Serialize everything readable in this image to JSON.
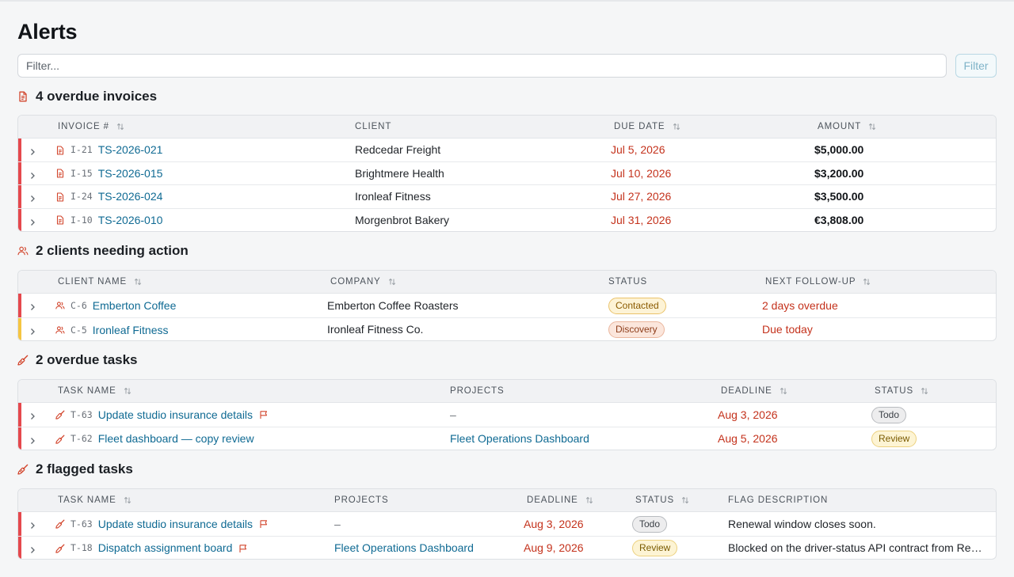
{
  "page": {
    "title": "Alerts",
    "filter_placeholder": "Filter...",
    "filter_button": "Filter"
  },
  "colors": {
    "accent_red": "#e5484d",
    "accent_yellow": "#f5c542",
    "link": "#0f6a93",
    "overdue": "#c4321c"
  },
  "invoices": {
    "title": "4 overdue invoices",
    "icon": "document-icon",
    "columns": [
      "Invoice #",
      "Client",
      "Due date",
      "Amount"
    ],
    "rows": [
      {
        "code": "I-21",
        "number": "TS-2026-021",
        "client": "Redcedar Freight",
        "due": "Jul 5, 2026",
        "amount": "$5,000.00"
      },
      {
        "code": "I-15",
        "number": "TS-2026-015",
        "client": "Brightmere Health",
        "due": "Jul 10, 2026",
        "amount": "$3,200.00"
      },
      {
        "code": "I-24",
        "number": "TS-2026-024",
        "client": "Ironleaf Fitness",
        "due": "Jul 27, 2026",
        "amount": "$3,500.00"
      },
      {
        "code": "I-10",
        "number": "TS-2026-010",
        "client": "Morgenbrot Bakery",
        "due": "Jul 31, 2026",
        "amount": "€3,808.00"
      }
    ]
  },
  "clients": {
    "title": "2 clients needing action",
    "icon": "users-icon",
    "columns": [
      "Client name",
      "Company",
      "Status",
      "Next follow-up"
    ],
    "rows": [
      {
        "code": "C-6",
        "name": "Emberton Coffee",
        "company": "Emberton Coffee Roasters",
        "status": "Contacted",
        "followup": "2 days overdue",
        "accent": "red"
      },
      {
        "code": "C-5",
        "name": "Ironleaf Fitness",
        "company": "Ironleaf Fitness Co.",
        "status": "Discovery",
        "followup": "Due today",
        "accent": "yellow"
      }
    ]
  },
  "overdue_tasks": {
    "title": "2 overdue tasks",
    "icon": "broom-icon",
    "columns": [
      "Task name",
      "Projects",
      "Deadline",
      "Status"
    ],
    "rows": [
      {
        "code": "T-63",
        "name": "Update studio insurance details",
        "project": "–",
        "deadline": "Aug 3, 2026",
        "status": "Todo"
      },
      {
        "code": "T-62",
        "name": "Fleet dashboard — copy review",
        "project": "Fleet Operations Dashboard",
        "deadline": "Aug 5, 2026",
        "status": "Review"
      }
    ]
  },
  "flagged_tasks": {
    "title": "2 flagged tasks",
    "icon": "broom-icon",
    "columns": [
      "Task name",
      "Projects",
      "Deadline",
      "Status",
      "Flag description"
    ],
    "rows": [
      {
        "code": "T-63",
        "name": "Update studio insurance details",
        "project": "–",
        "deadline": "Aug 3, 2026",
        "status": "Todo",
        "flag": "Renewal window closes soon."
      },
      {
        "code": "T-18",
        "name": "Dispatch assignment board",
        "project": "Fleet Operations Dashboard",
        "deadline": "Aug 9, 2026",
        "status": "Review",
        "flag": "Blocked on the driver-status API contract from Redc..."
      }
    ]
  }
}
